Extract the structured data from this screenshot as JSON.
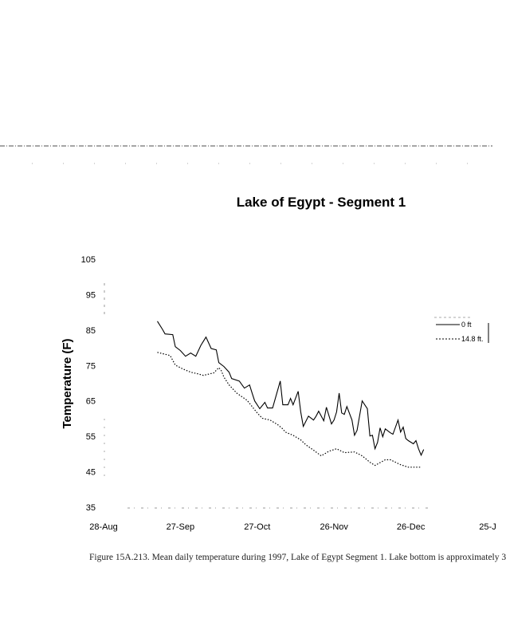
{
  "chart_data": {
    "type": "line",
    "title": "Lake of Egypt - Segment 1",
    "xlabel": "",
    "ylabel": "Temperature (F)",
    "ylim": [
      35,
      105
    ],
    "yticks": [
      35,
      45,
      55,
      65,
      75,
      85,
      95,
      105
    ],
    "xlim": [
      "1997-08-28",
      "1998-01-25"
    ],
    "xticks": [
      {
        "date": "1997-08-28",
        "label": "28-Aug"
      },
      {
        "date": "1997-09-27",
        "label": "27-Sep"
      },
      {
        "date": "1997-10-27",
        "label": "27-Oct"
      },
      {
        "date": "1997-11-26",
        "label": "26-Nov"
      },
      {
        "date": "1997-12-26",
        "label": "26-Dec"
      },
      {
        "date": "1998-01-25",
        "label": "25-J"
      }
    ],
    "grid": false,
    "legend_placement": "right",
    "series": [
      {
        "name": "0 ft",
        "style": "solid",
        "color": "#000000",
        "points": [
          [
            "1997-09-18",
            87.5
          ],
          [
            "1997-09-20",
            85.2
          ],
          [
            "1997-09-21",
            83.9
          ],
          [
            "1997-09-24",
            83.7
          ],
          [
            "1997-09-25",
            80.3
          ],
          [
            "1997-09-27",
            79.2
          ],
          [
            "1997-09-29",
            77.6
          ],
          [
            "1997-10-01",
            78.5
          ],
          [
            "1997-10-03",
            77.6
          ],
          [
            "1997-10-05",
            80.7
          ],
          [
            "1997-10-07",
            83.0
          ],
          [
            "1997-10-09",
            79.8
          ],
          [
            "1997-10-11",
            79.4
          ],
          [
            "1997-10-12",
            75.8
          ],
          [
            "1997-10-14",
            74.7
          ],
          [
            "1997-10-16",
            73.1
          ],
          [
            "1997-10-17",
            71.3
          ],
          [
            "1997-10-20",
            70.6
          ],
          [
            "1997-10-22",
            68.6
          ],
          [
            "1997-10-24",
            69.5
          ],
          [
            "1997-10-25",
            67.2
          ],
          [
            "1997-10-26",
            65.0
          ],
          [
            "1997-10-28",
            62.8
          ],
          [
            "1997-10-30",
            64.6
          ],
          [
            "1997-10-31",
            63.0
          ],
          [
            "1997-11-02",
            63.0
          ],
          [
            "1997-11-05",
            70.6
          ],
          [
            "1997-11-06",
            63.9
          ],
          [
            "1997-11-08",
            63.9
          ],
          [
            "1997-11-09",
            65.7
          ],
          [
            "1997-11-10",
            63.9
          ],
          [
            "1997-11-12",
            67.7
          ],
          [
            "1997-11-13",
            61.9
          ],
          [
            "1997-11-14",
            57.8
          ],
          [
            "1997-11-16",
            60.7
          ],
          [
            "1997-11-18",
            59.6
          ],
          [
            "1997-11-19",
            60.7
          ],
          [
            "1997-11-20",
            62.1
          ],
          [
            "1997-11-22",
            59.4
          ],
          [
            "1997-11-23",
            63.2
          ],
          [
            "1997-11-25",
            58.5
          ],
          [
            "1997-11-26",
            59.6
          ],
          [
            "1997-11-27",
            61.9
          ],
          [
            "1997-11-28",
            67.2
          ],
          [
            "1997-11-29",
            61.6
          ],
          [
            "1997-11-30",
            61.2
          ],
          [
            "1997-12-01",
            63.4
          ],
          [
            "1997-12-03",
            59.6
          ],
          [
            "1997-12-04",
            55.3
          ],
          [
            "1997-12-05",
            56.7
          ],
          [
            "1997-12-07",
            65.0
          ],
          [
            "1997-12-09",
            62.8
          ],
          [
            "1997-12-10",
            55.1
          ],
          [
            "1997-12-11",
            55.3
          ],
          [
            "1997-12-12",
            51.5
          ],
          [
            "1997-12-13",
            53.3
          ],
          [
            "1997-12-14",
            57.4
          ],
          [
            "1997-12-15",
            54.9
          ],
          [
            "1997-12-16",
            57.1
          ],
          [
            "1997-12-18",
            56.0
          ],
          [
            "1997-12-19",
            55.6
          ],
          [
            "1997-12-21",
            59.6
          ],
          [
            "1997-12-22",
            56.2
          ],
          [
            "1997-12-23",
            57.6
          ],
          [
            "1997-12-24",
            54.4
          ],
          [
            "1997-12-25",
            53.8
          ],
          [
            "1997-12-27",
            52.9
          ],
          [
            "1997-12-28",
            53.8
          ],
          [
            "1997-12-29",
            51.5
          ],
          [
            "1997-12-30",
            49.7
          ],
          [
            "1997-12-31",
            51.3
          ]
        ]
      },
      {
        "name": "14.8 ft.",
        "style": "dotted",
        "color": "#000000",
        "points": [
          [
            "1997-09-18",
            78.7
          ],
          [
            "1997-09-23",
            77.8
          ],
          [
            "1997-09-25",
            75.1
          ],
          [
            "1997-09-28",
            74.0
          ],
          [
            "1997-10-01",
            73.1
          ],
          [
            "1997-10-04",
            72.6
          ],
          [
            "1997-10-06",
            72.2
          ],
          [
            "1997-10-10",
            72.9
          ],
          [
            "1997-10-12",
            74.4
          ],
          [
            "1997-10-13",
            73.5
          ],
          [
            "1997-10-14",
            71.7
          ],
          [
            "1997-10-16",
            69.5
          ],
          [
            "1997-10-19",
            67.2
          ],
          [
            "1997-10-23",
            65.2
          ],
          [
            "1997-10-25",
            63.4
          ],
          [
            "1997-10-27",
            61.6
          ],
          [
            "1997-10-29",
            60.1
          ],
          [
            "1997-11-01",
            59.6
          ],
          [
            "1997-11-04",
            58.3
          ],
          [
            "1997-11-06",
            57.1
          ],
          [
            "1997-11-07",
            56.2
          ],
          [
            "1997-11-10",
            55.3
          ],
          [
            "1997-11-13",
            54.0
          ],
          [
            "1997-11-15",
            52.6
          ],
          [
            "1997-11-18",
            51.1
          ],
          [
            "1997-11-21",
            49.5
          ],
          [
            "1997-11-24",
            50.8
          ],
          [
            "1997-11-27",
            51.5
          ],
          [
            "1997-11-30",
            50.4
          ],
          [
            "1997-12-04",
            50.6
          ],
          [
            "1997-12-07",
            49.5
          ],
          [
            "1997-12-10",
            47.7
          ],
          [
            "1997-12-12",
            46.8
          ],
          [
            "1997-12-16",
            48.4
          ],
          [
            "1997-12-18",
            48.4
          ],
          [
            "1997-12-22",
            47.0
          ],
          [
            "1997-12-25",
            46.3
          ],
          [
            "1997-12-30",
            46.3
          ]
        ]
      }
    ]
  },
  "caption": "Figure 15A.213. Mean daily temperature during 1997, Lake of Egypt Segment 1. Lake bottom is approximately 3"
}
